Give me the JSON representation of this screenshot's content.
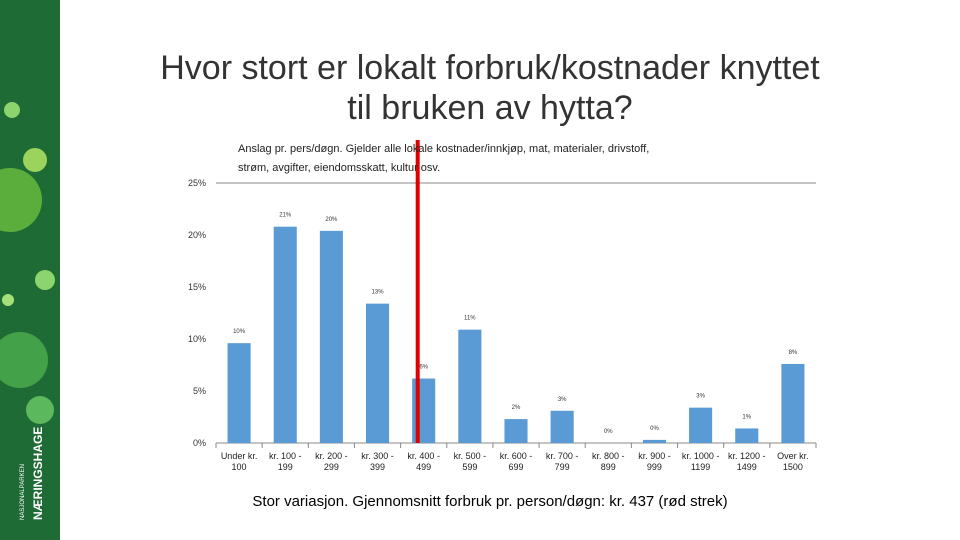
{
  "sidebar": {
    "brand": "NÆRINGSHAGE",
    "sub": "NASJONALPARKEN"
  },
  "chart_data": {
    "type": "bar",
    "title": "Hvor stort er lokalt forbruk/kostnader knyttet til bruken av hytta?",
    "subtitle": "Anslag pr. pers/døgn. Gjelder alle lokale kostnader/innkjøp, mat, materialer, drivstoff, strøm, avgifter, eiendomsskatt, kultur osv.",
    "footnote": "Stor variasjon. Gjennomsnitt forbruk pr. person/døgn: kr. 437 (rød strek)",
    "categories": [
      "Under kr. 100",
      "kr. 100 - 199",
      "kr. 200 - 299",
      "kr. 300 - 399",
      "kr. 400 - 499",
      "kr. 500 - 599",
      "kr. 600 - 699",
      "kr. 700 - 799",
      "kr. 800 - 899",
      "kr. 900 - 999",
      "kr. 1000 - 1199",
      "kr. 1200 - 1499",
      "Over kr. 1500"
    ],
    "values": [
      9.6,
      20.8,
      20.4,
      13.4,
      6.2,
      10.9,
      2.3,
      3.1,
      0,
      0.3,
      3.4,
      1.4,
      7.6
    ],
    "value_labels": [
      "10%",
      "21%",
      "20%",
      "13%",
      "6%",
      "11%",
      "2%",
      "3%",
      "0%",
      "0%",
      "3%",
      "1%",
      "8%"
    ],
    "color": "#5b9bd5",
    "ylim": [
      0,
      25
    ],
    "yticks": [
      {
        "value": 0,
        "label": "0%"
      },
      {
        "value": 5,
        "label": "5%"
      },
      {
        "value": 10,
        "label": "10%"
      },
      {
        "value": 15,
        "label": "15%"
      },
      {
        "value": 20,
        "label": "20%"
      },
      {
        "value": 25,
        "label": "25%"
      }
    ],
    "grid": false,
    "reference_line": {
      "value": 437,
      "color": "#e00000"
    }
  }
}
